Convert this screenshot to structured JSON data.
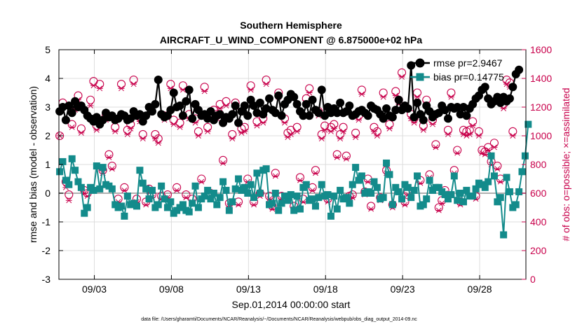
{
  "chart_data": {
    "type": "line",
    "title": "Southern Hemisphere",
    "subtitle": "AIRCRAFT_U_WIND_COMPONENT @ 6.875000e+02 hPa",
    "xlabel": "Sep.01,2014 00:00:00 start",
    "ylabel": "rmse and bias (model - observation)",
    "y2label": "# of obs: o=possible; ×=assimilated",
    "footnote": "data file: /Users/gharamti/Documents/NCAR/Reanalysis/~/Documents/NCAR/Reanalysis/webpub/obs_diag_output_2014-09.nc",
    "xlim": [
      0.2,
      30.5
    ],
    "ylim": [
      -3,
      5
    ],
    "y2lim": [
      0,
      1600
    ],
    "xticks": [
      2.5,
      7.5,
      12.5,
      17.5,
      22.5,
      27.5
    ],
    "xtick_labels": [
      "09/03",
      "09/08",
      "09/13",
      "09/18",
      "09/23",
      "09/28"
    ],
    "yticks": [
      "-3",
      "-2",
      "-1",
      "0",
      "1",
      "2",
      "3",
      "4",
      "5"
    ],
    "y2ticks": [
      "0",
      "200",
      "400",
      "600",
      "800",
      "1000",
      "1200",
      "1400",
      "1600"
    ],
    "zero_line": 0,
    "grid": true,
    "legend_position": "top-right",
    "colors": {
      "rmse": "#000000",
      "bias": "#138b8b",
      "obs": "#c8004b",
      "zero": "#b0b0b0",
      "grid": "#dcdcdc"
    },
    "series": [
      {
        "name": "rmse pr=2.9467",
        "axis": "left",
        "values": [
          2.85,
          3.0,
          2.55,
          3.05,
          2.8,
          3.2,
          3.0,
          3.05,
          2.9,
          2.7,
          2.6,
          2.5,
          2.65,
          2.4,
          2.55,
          2.8,
          2.65,
          2.7,
          2.55,
          2.6,
          2.75,
          2.7,
          2.55,
          2.6,
          2.85,
          2.7,
          2.75,
          2.5,
          2.7,
          3.0,
          2.85,
          3.1,
          3.95,
          2.75,
          2.65,
          2.7,
          2.9,
          3.5,
          3.0,
          3.05,
          2.7,
          3.2,
          3.6,
          2.6,
          3.1,
          2.9,
          2.7,
          2.75,
          2.6,
          2.85,
          2.55,
          2.7,
          2.75,
          2.45,
          2.65,
          2.6,
          2.75,
          3.05,
          2.45,
          2.85,
          3.05,
          2.7,
          3.25,
          3.05,
          2.8,
          3.15,
          2.75,
          2.95,
          3.3,
          2.9,
          2.8,
          3.4,
          2.7,
          3.1,
          3.25,
          3.45,
          3.35,
          3.1,
          2.85,
          2.7,
          3.1,
          2.7,
          3.25,
          2.9,
          2.8,
          3.6,
          2.7,
          3.0,
          2.8,
          2.95,
          2.8,
          3.15,
          2.8,
          2.85,
          3.05,
          2.7,
          2.75,
          2.85,
          2.9,
          2.8,
          2.7,
          3.05,
          2.95,
          2.9,
          2.75,
          2.6,
          2.95,
          2.7,
          2.65,
          2.9,
          3.25,
          2.9,
          3.05,
          2.95,
          4.45,
          2.65,
          3.15,
          2.75,
          2.55,
          3.05,
          2.85,
          2.65,
          2.75,
          2.8,
          3.05,
          2.9,
          2.6,
          3.0,
          2.95,
          3.0,
          2.75,
          3.0,
          2.7,
          2.95,
          3.1,
          3.3,
          3.4,
          3.6,
          3.7,
          3.3,
          3.1,
          3.2,
          3.35,
          3.15,
          3.35,
          3.2,
          3.3,
          3.7,
          4.15,
          4.3
        ],
        "marker": "filled-circle"
      },
      {
        "name": "bias pr=0.14775",
        "axis": "left",
        "values": [
          0.75,
          1.1,
          0.45,
          0.3,
          1.2,
          0.8,
          0.4,
          0.2,
          -0.7,
          -0.5,
          0.2,
          0.1,
          0.95,
          0.15,
          0.9,
          0.3,
          0.25,
          0.15,
          -0.4,
          -0.5,
          -0.45,
          -0.8,
          -0.1,
          -0.4,
          -0.35,
          -0.45,
          0.8,
          0.35,
          0.15,
          -0.2,
          0.1,
          -0.5,
          -0.4,
          0.25,
          -0.2,
          -0.5,
          -0.3,
          -0.7,
          -0.6,
          -0.5,
          -0.4,
          -0.6,
          -0.65,
          -0.35,
          0.25,
          -0.5,
          -0.2,
          -0.1,
          0.1,
          -0.2,
          0.0,
          -0.4,
          -0.15,
          0.4,
          0.1,
          -0.6,
          -0.3,
          0.15,
          0.5,
          0.1,
          0.2,
          0.0,
          0.3,
          -0.15,
          0.7,
          0.0,
          0.8,
          0.85,
          -0.4,
          -0.35,
          0.0,
          -0.6,
          -0.35,
          -0.1,
          -0.25,
          -0.05,
          -0.6,
          -0.1,
          -0.55,
          0.2,
          0.3,
          -0.25,
          -0.2,
          -0.45,
          -0.15,
          0.3,
          -0.1,
          -0.05,
          -0.8,
          -0.1,
          -0.55,
          0.1,
          -0.2,
          -0.15,
          -0.35,
          0.3,
          0.9,
          0.45,
          0.6,
          0.0,
          0.05,
          0.0,
          0.4,
          0.2,
          -0.2,
          -0.15,
          1.05,
          0.65,
          -0.4,
          0.2,
          0.05,
          -0.2,
          0.3,
          0.2,
          -0.15,
          0.1,
          0.6,
          -0.45,
          -0.4,
          -0.2,
          0.45,
          0.1,
          0.2,
          0.2,
          0.05,
          -0.05,
          -0.2,
          -0.05,
          0.6,
          -0.25,
          0.0,
          -0.3,
          0.1,
          -0.1,
          -0.1,
          0.15,
          0.35,
          0.3,
          0.2,
          0.4,
          1.3,
          0.6,
          -0.3,
          -0.15,
          -1.45,
          0.55,
          0.05,
          -0.5,
          -0.4,
          0.05,
          0.75,
          1.3,
          2.4
        ],
        "marker": "filled-square"
      },
      {
        "name": "obs possible",
        "axis": "right",
        "values": [
          1000,
          1230,
          680,
          590,
          1080,
          1210,
          1280,
          1050,
          620,
          600,
          1250,
          1380,
          1070,
          1360,
          760,
          1140,
          870,
          790,
          1060,
          560,
          1360,
          640,
          1040,
          1080,
          1390,
          560,
          1130,
          1010,
          540,
          630,
          590,
          1010,
          980,
          580,
          1140,
          590,
          1360,
          1110,
          640,
          1090,
          1350,
          590,
          1150,
          560,
          1120,
          1030,
          700,
          1340,
          1060,
          600,
          1180,
          1150,
          1220,
          830,
          1240,
          530,
          1010,
          1230,
          540,
          1050,
          1060,
          700,
          1350,
          540,
          1100,
          600,
          1120,
          1390,
          580,
          510,
          740,
          1300,
          580,
          1120,
          1020,
          1040,
          510,
          1060,
          710,
          560,
          1260,
          1330,
          640,
          760,
          1170,
          1010,
          1070,
          560,
          1060,
          1080,
          870,
          1010,
          1060,
          860,
          580,
          590,
          1020,
          1140,
          1320,
          610,
          700,
          510,
          1060,
          1030,
          570,
          1300,
          760,
          1080,
          520,
          1310,
          1250,
          1440,
          540,
          610,
          1150,
          1120,
          1300,
          690,
          1070,
          1250,
          730,
          1110,
          940,
          500,
          550,
          620,
          1040,
          1300,
          760,
          900,
          540,
          1040,
          1030,
          1040,
          1100,
          580,
          1030,
          900,
          890,
          920,
          820,
          950,
          790,
          700,
          1220,
          1390,
          1370,
          1030
        ],
        "marker": "open-circle"
      },
      {
        "name": "obs assimilated",
        "axis": "right",
        "values": [
          1000,
          1200,
          640,
          550,
          1060,
          1180,
          1250,
          1020,
          600,
          580,
          1210,
          1350,
          1040,
          1330,
          740,
          1110,
          850,
          770,
          1030,
          540,
          1330,
          620,
          1010,
          1050,
          1360,
          540,
          1100,
          980,
          520,
          610,
          570,
          980,
          950,
          560,
          1110,
          570,
          1330,
          1080,
          620,
          1060,
          1320,
          570,
          1120,
          540,
          1090,
          1000,
          680,
          1310,
          1030,
          580,
          1150,
          1120,
          1190,
          810,
          1210,
          510,
          980,
          1200,
          520,
          1020,
          1030,
          680,
          1320,
          520,
          1070,
          580,
          1090,
          1360,
          560,
          490,
          720,
          1270,
          560,
          1090,
          990,
          1010,
          490,
          1030,
          690,
          540,
          1230,
          1300,
          620,
          740,
          1140,
          980,
          1040,
          540,
          1030,
          1050,
          850,
          980,
          1030,
          840,
          560,
          570,
          990,
          1110,
          1290,
          590,
          680,
          490,
          1030,
          1000,
          550,
          1270,
          740,
          1050,
          500,
          1280,
          1220,
          1410,
          520,
          590,
          1120,
          1090,
          1270,
          670,
          1040,
          1220,
          710,
          1080,
          920,
          480,
          530,
          600,
          1010,
          1270,
          740,
          880,
          520,
          1010,
          1000,
          1010,
          1070,
          560,
          1000,
          880,
          870,
          900,
          800,
          920,
          770,
          680,
          1190,
          1360,
          1340,
          1000
        ],
        "marker": "cross"
      }
    ]
  }
}
